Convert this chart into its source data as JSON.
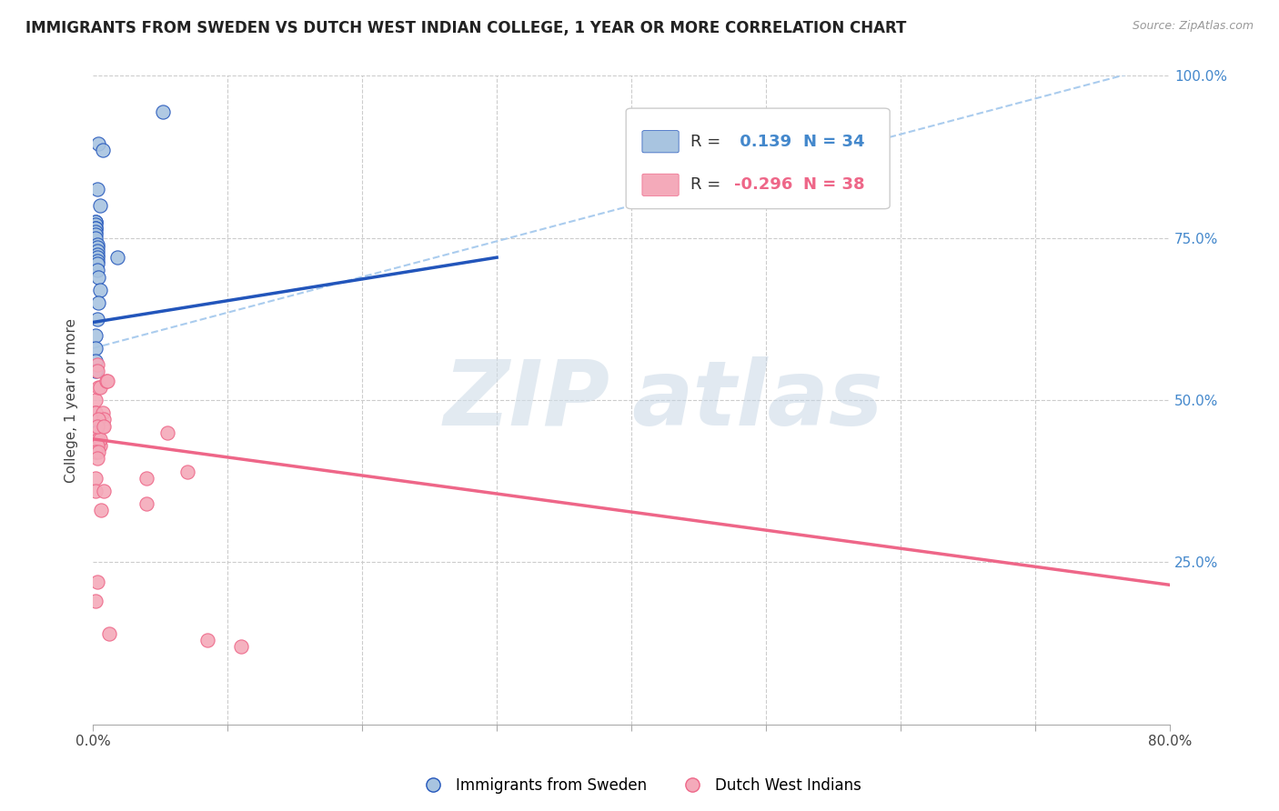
{
  "title": "IMMIGRANTS FROM SWEDEN VS DUTCH WEST INDIAN COLLEGE, 1 YEAR OR MORE CORRELATION CHART",
  "source": "Source: ZipAtlas.com",
  "ylabel": "College, 1 year or more",
  "xlim": [
    0.0,
    0.8
  ],
  "ylim": [
    0.0,
    1.0
  ],
  "xtick_positions": [
    0.0,
    0.1,
    0.2,
    0.3,
    0.4,
    0.5,
    0.6,
    0.7,
    0.8
  ],
  "xticklabels": [
    "0.0%",
    "",
    "",
    "",
    "",
    "",
    "",
    "",
    "80.0%"
  ],
  "ytick_positions": [
    0.0,
    0.25,
    0.5,
    0.75,
    1.0
  ],
  "yticklabels_right": [
    "",
    "25.0%",
    "50.0%",
    "75.0%",
    "100.0%"
  ],
  "blue_R": 0.139,
  "blue_N": 34,
  "pink_R": -0.296,
  "pink_N": 38,
  "blue_color": "#A8C4E0",
  "pink_color": "#F4AABA",
  "blue_line_color": "#2255BB",
  "pink_line_color": "#EE6688",
  "dashed_line_color": "#AACCEE",
  "right_tick_color": "#4488CC",
  "watermark_zip_color": "#D8E8F0",
  "watermark_atlas_color": "#C0D8F0",
  "blue_scatter_x": [
    0.004,
    0.007,
    0.003,
    0.005,
    0.002,
    0.002,
    0.002,
    0.002,
    0.002,
    0.002,
    0.002,
    0.002,
    0.003,
    0.003,
    0.003,
    0.003,
    0.003,
    0.003,
    0.003,
    0.003,
    0.004,
    0.005,
    0.004,
    0.003,
    0.002,
    0.002,
    0.002,
    0.002,
    0.002,
    0.002,
    0.002,
    0.002,
    0.052,
    0.018
  ],
  "blue_scatter_y": [
    0.895,
    0.885,
    0.825,
    0.8,
    0.775,
    0.775,
    0.77,
    0.765,
    0.765,
    0.76,
    0.755,
    0.75,
    0.74,
    0.735,
    0.73,
    0.725,
    0.72,
    0.715,
    0.71,
    0.7,
    0.69,
    0.67,
    0.65,
    0.625,
    0.6,
    0.58,
    0.56,
    0.545,
    0.48,
    0.47,
    0.465,
    0.45,
    0.945,
    0.72
  ],
  "pink_scatter_x": [
    0.002,
    0.002,
    0.002,
    0.003,
    0.003,
    0.004,
    0.005,
    0.01,
    0.007,
    0.008,
    0.002,
    0.003,
    0.004,
    0.004,
    0.005,
    0.007,
    0.005,
    0.004,
    0.003,
    0.003,
    0.002,
    0.011,
    0.008,
    0.004,
    0.003,
    0.002,
    0.002,
    0.006,
    0.003,
    0.002,
    0.04,
    0.055,
    0.085,
    0.11,
    0.04,
    0.07,
    0.008,
    0.012
  ],
  "pink_scatter_y": [
    0.5,
    0.48,
    0.48,
    0.555,
    0.545,
    0.52,
    0.52,
    0.53,
    0.48,
    0.47,
    0.42,
    0.45,
    0.44,
    0.43,
    0.43,
    0.46,
    0.44,
    0.47,
    0.46,
    0.43,
    0.42,
    0.53,
    0.46,
    0.42,
    0.41,
    0.38,
    0.36,
    0.33,
    0.22,
    0.19,
    0.34,
    0.45,
    0.13,
    0.12,
    0.38,
    0.39,
    0.36,
    0.14
  ],
  "blue_line_x0": 0.0,
  "blue_line_x1": 0.3,
  "blue_line_y0": 0.62,
  "blue_line_y1": 0.72,
  "dashed_line_x0": 0.0,
  "dashed_line_x1": 0.8,
  "dashed_line_y0": 0.58,
  "dashed_line_y1": 1.02,
  "pink_line_x0": 0.0,
  "pink_line_x1": 0.8,
  "pink_line_y0": 0.44,
  "pink_line_y1": 0.215,
  "title_fontsize": 12,
  "label_fontsize": 11,
  "tick_fontsize": 11,
  "legend_blue_text": "R =",
  "legend_blue_r_val": "  0.139",
  "legend_blue_n": "N = 34",
  "legend_pink_text": "R =",
  "legend_pink_r_val": "-0.296",
  "legend_pink_n": "N = 38"
}
